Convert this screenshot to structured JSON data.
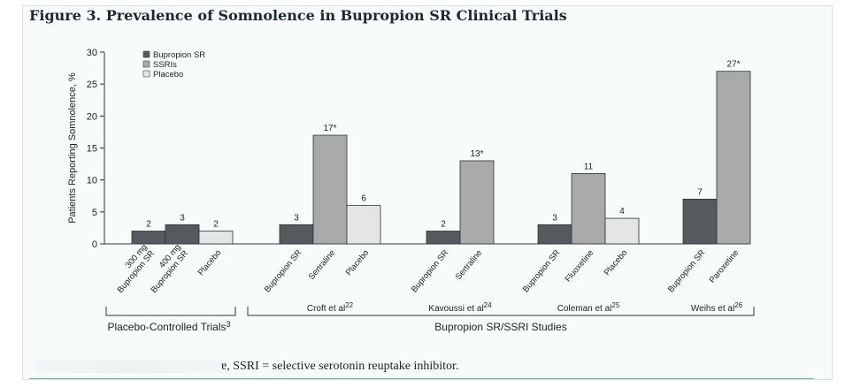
{
  "figure_title": "Figure 3. Prevalence of Somnolence in Bupropion SR Clinical Trials",
  "footnote": "ɐ, SSRI = selective serotonin reuptake inhibitor.",
  "colors": {
    "bupropion": "#555a5e",
    "ssri": "#a9abab",
    "placebo": "#e4e6e6"
  },
  "chart_data": {
    "type": "bar",
    "title": "Figure 3. Prevalence of Somnolence in Bupropion SR Clinical Trials",
    "ylabel": "Patients Reporting Somnolence, %",
    "ylim": [
      0,
      30
    ],
    "yticks": [
      0,
      5,
      10,
      15,
      20,
      25,
      30
    ],
    "legend": [
      {
        "label": "Bupropion SR",
        "series": "bupropion"
      },
      {
        "label": "SSRIs",
        "series": "ssri"
      },
      {
        "label": "Placebo",
        "series": "placebo"
      }
    ],
    "groups": [
      {
        "label": "",
        "bars": [
          {
            "category": "300 mg\nBupropion SR",
            "series": "bupropion",
            "value": 2,
            "label": "2"
          },
          {
            "category": "400 mg\nBupropion SR",
            "series": "bupropion",
            "value": 3,
            "label": "3"
          },
          {
            "category": "Placebo",
            "series": "placebo",
            "value": 2,
            "label": "2"
          }
        ]
      },
      {
        "label": "Croft et al",
        "sup": "22",
        "bars": [
          {
            "category": "Bupropion SR",
            "series": "bupropion",
            "value": 3,
            "label": "3"
          },
          {
            "category": "Sertraline",
            "series": "ssri",
            "value": 17,
            "label": "17*"
          },
          {
            "category": "Placebo",
            "series": "placebo",
            "value": 6,
            "label": "6"
          }
        ]
      },
      {
        "label": "Kavoussi et al",
        "sup": "24",
        "bars": [
          {
            "category": "Bupropion SR",
            "series": "bupropion",
            "value": 2,
            "label": "2"
          },
          {
            "category": "Sertraline",
            "series": "ssri",
            "value": 13,
            "label": "13*"
          }
        ]
      },
      {
        "label": "Coleman et al",
        "sup": "25",
        "bars": [
          {
            "category": "Bupropion SR",
            "series": "bupropion",
            "value": 3,
            "label": "3"
          },
          {
            "category": "Fluoxetine",
            "series": "ssri",
            "value": 11,
            "label": "11"
          },
          {
            "category": "Placebo",
            "series": "placebo",
            "value": 4,
            "label": "4"
          }
        ]
      },
      {
        "label": "Weihs et al",
        "sup": "26",
        "bars": [
          {
            "category": "Bupropion SR",
            "series": "bupropion",
            "value": 7,
            "label": "7"
          },
          {
            "category": "Paroxetine",
            "series": "ssri",
            "value": 27,
            "label": "27*"
          }
        ]
      }
    ],
    "brackets": [
      {
        "label": "Placebo-Controlled Trials",
        "sup": "3"
      },
      {
        "label": "Bupropion SR/SSRI Studies",
        "sup": ""
      }
    ]
  }
}
